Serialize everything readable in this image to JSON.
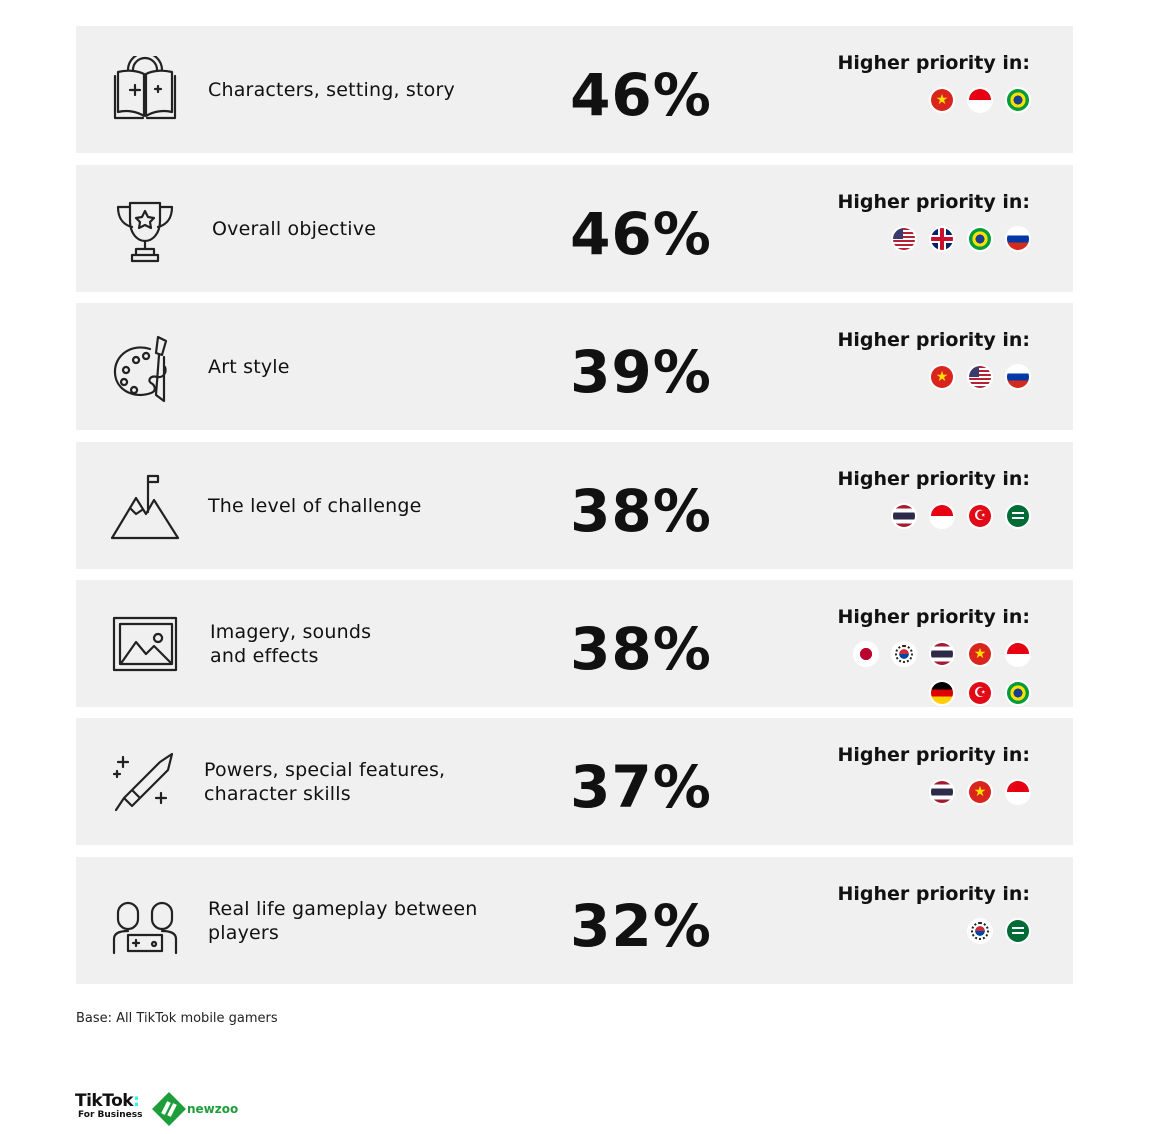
{
  "heading": "Higher priority in:",
  "rows": [
    {
      "icon": "book-icon",
      "label": "Characters, setting, story",
      "pct": "46%",
      "flags": [
        [
          "vn",
          "id",
          "br"
        ]
      ]
    },
    {
      "icon": "trophy-icon",
      "label": "Overall objective",
      "pct": "46%",
      "flags": [
        [
          "us",
          "gb",
          "br",
          "ru"
        ]
      ]
    },
    {
      "icon": "palette-icon",
      "label": "Art style",
      "pct": "39%",
      "flags": [
        [
          "vn",
          "us",
          "ru"
        ]
      ]
    },
    {
      "icon": "mountain-flag-icon",
      "label": "The level of challenge",
      "pct": "38%",
      "flags": [
        [
          "th",
          "id",
          "tr",
          "sa"
        ]
      ]
    },
    {
      "icon": "image-icon",
      "label": "Imagery, sounds\nand effects",
      "pct": "38%",
      "flags": [
        [
          "jp",
          "kr",
          "th",
          "vn",
          "id"
        ],
        [
          "de",
          "tr",
          "br"
        ]
      ]
    },
    {
      "icon": "sword-icon",
      "label": "Powers, special features,\ncharacter skills",
      "pct": "37%",
      "flags": [
        [
          "th",
          "vn",
          "id"
        ]
      ]
    },
    {
      "icon": "gamers-icon",
      "label": "Real life gameplay between\nplayers",
      "pct": "32%",
      "flags": [
        [
          "kr",
          "sa"
        ]
      ]
    }
  ],
  "flag_names": {
    "vn": "vietnam",
    "id": "indonesia",
    "br": "brazil",
    "us": "usa",
    "gb": "uk",
    "ru": "russia",
    "th": "thailand",
    "tr": "turkey",
    "sa": "saudi-arabia",
    "jp": "japan",
    "kr": "south-korea",
    "de": "germany"
  },
  "footer": {
    "base": "Base: All TikTok mobile gamers",
    "logo_tiktok": "TikTok",
    "logo_tiktok_sub": "For Business",
    "logo_newzoo": "newzoo"
  },
  "colors": {
    "row_bg": "#f0f0f0",
    "newzoo_green": "#1e9e3a"
  }
}
